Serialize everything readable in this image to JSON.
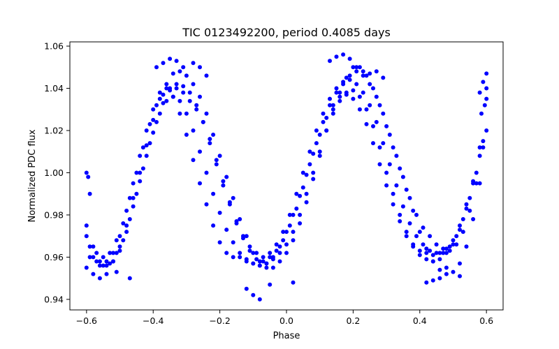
{
  "chart_data": {
    "type": "scatter",
    "title": "TIC 0123492200, period 0.4085 days",
    "xlabel": "Phase",
    "ylabel": "Normalized PDC flux",
    "xlim": [
      -0.65,
      0.65
    ],
    "ylim": [
      0.935,
      1.062
    ],
    "xticks": [
      -0.6,
      -0.4,
      -0.2,
      0.0,
      0.2,
      0.4,
      0.6
    ],
    "xtick_labels": [
      "−0.6",
      "−0.4",
      "−0.2",
      "0.0",
      "0.2",
      "0.4",
      "0.6"
    ],
    "yticks": [
      0.94,
      0.96,
      0.98,
      1.0,
      1.02,
      1.04,
      1.06
    ],
    "ytick_labels": [
      "0.94",
      "0.96",
      "0.98",
      "1.00",
      "1.02",
      "1.04",
      "1.06"
    ],
    "grid": false,
    "marker_color": "#0000ff",
    "series": [
      {
        "name": "Normalized PDC flux",
        "x": [
          -0.6,
          -0.58,
          -0.56,
          -0.54,
          -0.52,
          -0.5,
          -0.48,
          -0.46,
          -0.44,
          -0.42,
          -0.4,
          -0.38,
          -0.36,
          -0.34,
          -0.32,
          -0.3,
          -0.28,
          -0.26,
          -0.24,
          -0.22,
          -0.2,
          -0.18,
          -0.16,
          -0.14,
          -0.12,
          -0.1,
          -0.08,
          -0.06,
          -0.04,
          -0.02,
          0.0,
          0.02,
          0.04,
          0.06,
          0.08,
          0.1,
          0.12,
          0.14,
          0.16,
          0.18,
          0.2,
          0.22,
          0.24,
          0.26,
          0.28,
          0.3,
          0.32,
          0.34,
          0.36,
          0.38,
          0.4,
          0.42,
          0.44,
          0.46,
          0.48,
          0.5,
          0.52,
          0.54,
          0.56,
          0.58,
          0.6,
          -0.59,
          -0.57,
          -0.55,
          -0.53,
          -0.51,
          -0.49,
          -0.47,
          -0.45,
          -0.43,
          -0.41,
          -0.39,
          -0.37,
          -0.35,
          -0.33,
          -0.31,
          -0.29,
          -0.27,
          -0.25,
          -0.23,
          -0.21,
          -0.19,
          -0.17,
          -0.15,
          -0.13,
          -0.11,
          -0.09,
          -0.07,
          -0.05,
          -0.03,
          -0.01,
          0.01,
          0.03,
          0.05,
          0.07,
          0.09,
          0.11,
          0.13,
          0.15,
          0.17,
          0.19,
          0.21,
          0.23,
          0.25,
          0.27,
          0.29,
          0.31,
          0.33,
          0.35,
          0.37,
          0.39,
          0.41,
          0.43,
          0.45,
          0.47,
          0.49,
          0.51,
          0.53,
          0.55,
          0.57,
          0.59,
          -0.6,
          -0.58,
          -0.56,
          -0.54,
          -0.52,
          -0.5,
          -0.48,
          -0.46,
          -0.44,
          -0.42,
          -0.4,
          -0.38,
          -0.36,
          -0.34,
          -0.32,
          -0.3,
          -0.28,
          -0.26,
          -0.24,
          -0.22,
          -0.2,
          -0.18,
          -0.16,
          -0.14,
          -0.12,
          -0.1,
          -0.08,
          -0.06,
          -0.04,
          -0.02,
          0.0,
          0.02,
          0.04,
          0.06,
          0.08,
          0.1,
          0.12,
          0.14,
          0.16,
          0.18,
          0.2,
          0.22,
          0.24,
          0.26,
          0.28,
          0.3,
          0.32,
          0.34,
          0.36,
          0.38,
          0.4,
          0.42,
          0.44,
          0.46,
          0.48,
          0.5,
          0.52,
          0.54,
          0.56,
          0.58,
          0.6,
          -0.59,
          -0.57,
          -0.55,
          -0.53,
          -0.51,
          -0.49,
          -0.47,
          -0.45,
          -0.43,
          -0.41,
          -0.39,
          -0.37,
          -0.35,
          -0.33,
          -0.31,
          -0.29,
          -0.27,
          -0.25,
          -0.23,
          -0.21,
          -0.19,
          -0.17,
          -0.15,
          -0.13,
          -0.11,
          -0.09,
          -0.07,
          -0.05,
          -0.03,
          -0.01,
          0.01,
          0.03,
          0.05,
          0.07,
          0.09,
          0.11,
          0.13,
          0.15,
          0.17,
          0.19,
          0.21,
          0.23,
          0.25,
          0.27,
          0.29,
          0.31,
          0.33,
          0.35,
          0.37,
          0.39,
          0.41,
          0.43,
          0.45,
          0.47,
          0.49,
          0.51,
          0.53,
          0.55,
          0.57,
          0.59,
          -0.6,
          -0.58,
          -0.56,
          -0.54,
          -0.52,
          -0.5,
          -0.48,
          -0.46,
          -0.44,
          -0.42,
          -0.4,
          -0.38,
          -0.36,
          -0.34,
          -0.32,
          -0.3,
          -0.28,
          -0.26,
          -0.24,
          -0.22,
          -0.2,
          -0.18,
          -0.16,
          -0.14,
          -0.12,
          -0.1,
          -0.08,
          -0.06,
          -0.04,
          -0.02,
          0.0,
          0.02,
          0.04,
          0.06,
          0.08,
          0.1,
          0.12,
          0.14,
          0.16,
          0.18,
          0.2,
          0.22,
          0.24,
          0.26,
          0.28,
          0.3,
          0.32,
          0.34,
          0.36,
          0.38,
          0.4,
          0.42,
          0.44,
          0.46,
          0.48,
          0.5,
          0.52,
          0.54,
          0.56,
          0.58,
          0.6,
          -0.39,
          -0.37,
          -0.35,
          -0.33,
          -0.31,
          0.13,
          0.15,
          0.17,
          0.19,
          0.21,
          0.23,
          -0.1,
          -0.08,
          -0.12,
          0.6,
          0.59,
          0.58,
          0.595,
          0.585,
          -0.6,
          -0.595,
          -0.59,
          0.48,
          0.46,
          0.42,
          -0.47,
          -0.51,
          0.44,
          0.52,
          -0.05,
          0.02,
          -0.28,
          -0.26,
          -0.24,
          0.25,
          0.27,
          0.29
        ],
        "y": [
          0.97,
          0.96,
          0.956,
          0.958,
          0.962,
          0.97,
          0.982,
          0.995,
          1.008,
          1.02,
          1.03,
          1.038,
          1.04,
          1.036,
          1.028,
          1.018,
          1.006,
          0.995,
          0.985,
          0.975,
          0.967,
          0.962,
          0.96,
          0.96,
          0.958,
          0.957,
          0.956,
          0.957,
          0.959,
          0.962,
          0.966,
          0.972,
          0.98,
          0.99,
          1.0,
          1.01,
          1.02,
          1.028,
          1.034,
          1.038,
          1.039,
          1.036,
          1.03,
          1.022,
          1.012,
          1.0,
          0.99,
          0.98,
          0.972,
          0.966,
          0.963,
          0.962,
          0.961,
          0.962,
          0.964,
          0.968,
          0.975,
          0.985,
          0.995,
          1.008,
          1.02,
          0.965,
          0.962,
          0.96,
          0.962,
          0.968,
          0.976,
          0.988,
          1.0,
          1.012,
          1.023,
          1.032,
          1.037,
          1.04,
          1.04,
          1.038,
          1.034,
          1.03,
          1.024,
          1.016,
          1.006,
          0.996,
          0.986,
          0.977,
          0.97,
          0.965,
          0.962,
          0.96,
          0.962,
          0.966,
          0.972,
          0.98,
          0.99,
          1.0,
          1.01,
          1.02,
          1.028,
          1.035,
          1.04,
          1.043,
          1.046,
          1.048,
          1.046,
          1.042,
          1.036,
          1.028,
          1.018,
          1.008,
          0.998,
          0.988,
          0.98,
          0.974,
          0.97,
          0.966,
          0.964,
          0.965,
          0.97,
          0.978,
          0.988,
          1.0,
          1.015,
          0.955,
          0.952,
          0.95,
          0.952,
          0.958,
          0.965,
          0.975,
          0.988,
          1.0,
          1.013,
          1.025,
          1.035,
          1.042,
          1.047,
          1.048,
          1.046,
          1.042,
          1.036,
          1.028,
          1.018,
          1.008,
          0.998,
          0.988,
          0.978,
          0.97,
          0.962,
          0.958,
          0.955,
          0.955,
          0.958,
          0.962,
          0.968,
          0.976,
          0.986,
          0.997,
          1.008,
          1.02,
          1.03,
          1.038,
          1.045,
          1.05,
          1.05,
          1.046,
          1.04,
          1.032,
          1.022,
          1.012,
          1.002,
          0.992,
          0.982,
          0.972,
          0.964,
          0.958,
          0.954,
          0.952,
          0.953,
          0.957,
          0.965,
          0.978,
          0.995,
          1.035,
          0.96,
          0.958,
          0.956,
          0.957,
          0.962,
          0.968,
          0.978,
          0.99,
          1.002,
          1.014,
          1.024,
          1.033,
          1.039,
          1.042,
          1.041,
          1.038,
          1.032,
          1.024,
          1.014,
          1.004,
          0.994,
          0.985,
          0.976,
          0.969,
          0.963,
          0.959,
          0.958,
          0.96,
          0.963,
          0.968,
          0.975,
          0.983,
          0.993,
          1.004,
          1.014,
          1.024,
          1.032,
          1.038,
          1.042,
          1.044,
          1.042,
          1.038,
          1.032,
          1.024,
          1.014,
          1.004,
          0.994,
          0.984,
          0.976,
          0.97,
          0.966,
          0.963,
          0.962,
          0.962,
          0.963,
          0.966,
          0.972,
          0.982,
          0.995,
          1.012,
          0.975,
          0.965,
          0.958,
          0.956,
          0.958,
          0.963,
          0.972,
          0.984,
          0.996,
          1.008,
          1.019,
          1.028,
          1.034,
          1.036,
          1.034,
          1.028,
          1.02,
          1.01,
          1.0,
          0.99,
          0.981,
          0.973,
          0.967,
          0.962,
          0.959,
          0.957,
          0.956,
          0.957,
          0.96,
          0.965,
          0.972,
          0.98,
          0.989,
          0.999,
          1.009,
          1.018,
          1.026,
          1.032,
          1.036,
          1.037,
          1.035,
          1.03,
          1.023,
          1.014,
          1.004,
          0.994,
          0.985,
          0.977,
          0.97,
          0.965,
          0.961,
          0.959,
          0.958,
          0.959,
          0.962,
          0.966,
          0.973,
          0.983,
          0.996,
          1.012,
          1.04,
          1.05,
          1.052,
          1.054,
          1.053,
          1.05,
          1.053,
          1.055,
          1.056,
          1.054,
          1.05,
          1.048,
          0.942,
          0.94,
          0.945,
          1.047,
          1.043,
          1.038,
          1.032,
          1.028,
          1.0,
          0.998,
          0.99,
          0.955,
          0.95,
          0.948,
          0.95,
          0.953,
          0.949,
          0.951,
          0.947,
          0.948,
          1.052,
          1.05,
          1.046,
          1.047,
          1.048,
          1.045
        ]
      }
    ]
  }
}
